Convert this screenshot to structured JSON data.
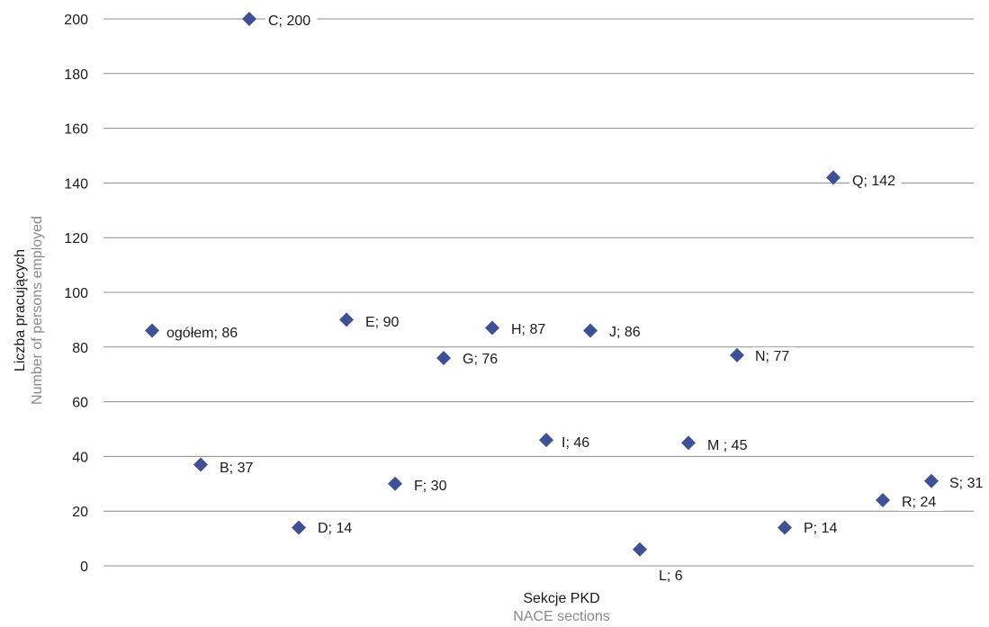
{
  "chart_data": {
    "type": "scatter",
    "xlabel": "Sekcje PKD",
    "xlabel_secondary": "NACE  sections",
    "ylabel": "Liczba pracujących",
    "ylabel_secondary": "Number of persons employed",
    "ylim": [
      0,
      200
    ],
    "yticks": [
      "0",
      "20",
      "40",
      "60",
      "80",
      "100",
      "120",
      "140",
      "160",
      "180",
      "200"
    ],
    "grid": true,
    "legend": "none",
    "marker": "diamond",
    "colors": {
      "marker": "#3f5196",
      "grid": "#8c8c8c",
      "secondary_text": "#8a8a8a"
    },
    "points": [
      {
        "category": "ogółem",
        "label": "ogółem; 86",
        "y": 86
      },
      {
        "category": "B",
        "label": "B; 37",
        "y": 37
      },
      {
        "category": "C",
        "label": "C; 200",
        "y": 200
      },
      {
        "category": "D",
        "label": "D; 14",
        "y": 14
      },
      {
        "category": "E",
        "label": "E; 90",
        "y": 90
      },
      {
        "category": "F",
        "label": "F; 30",
        "y": 30
      },
      {
        "category": "G",
        "label": "G; 76",
        "y": 76
      },
      {
        "category": "H",
        "label": "H; 87",
        "y": 87
      },
      {
        "category": "I",
        "label": "I; 46",
        "y": 46
      },
      {
        "category": "J",
        "label": "J; 86",
        "y": 86
      },
      {
        "category": "L",
        "label": "L; 6",
        "y": 6
      },
      {
        "category": "M",
        "label": "M ; 45",
        "y": 45
      },
      {
        "category": "N",
        "label": "N; 77",
        "y": 77
      },
      {
        "category": "P",
        "label": "P; 14",
        "y": 14
      },
      {
        "category": "Q",
        "label": "Q; 142",
        "y": 142
      },
      {
        "category": "R",
        "label": "R; 24",
        "y": 24
      },
      {
        "category": "S",
        "label": "S; 31",
        "y": 31
      }
    ]
  }
}
